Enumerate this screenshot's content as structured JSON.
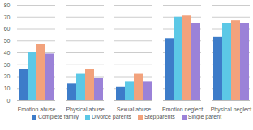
{
  "chart_data": {
    "type": "bar",
    "categories": [
      "Emotion abuse",
      "Physical abuse",
      "Sexual abuse",
      "Emotion neglect",
      "Physical neglect"
    ],
    "series": [
      {
        "name": "Complete family",
        "color": "#3d7cc9",
        "values": [
          26,
          14,
          11,
          52,
          53
        ]
      },
      {
        "name": "Divorce parents",
        "color": "#5cc8e6",
        "values": [
          40,
          22,
          16,
          70,
          65
        ]
      },
      {
        "name": "Stepparents",
        "color": "#f2a27c",
        "values": [
          47,
          26,
          22,
          71,
          67
        ]
      },
      {
        "name": "Single parent",
        "color": "#9b82d8",
        "values": [
          39,
          19,
          16,
          65,
          65
        ]
      }
    ],
    "ylim": [
      0,
      80
    ],
    "yticks": [
      0,
      10,
      20,
      30,
      40,
      50,
      60,
      70,
      80
    ],
    "grid": true,
    "legend": "bottom"
  }
}
